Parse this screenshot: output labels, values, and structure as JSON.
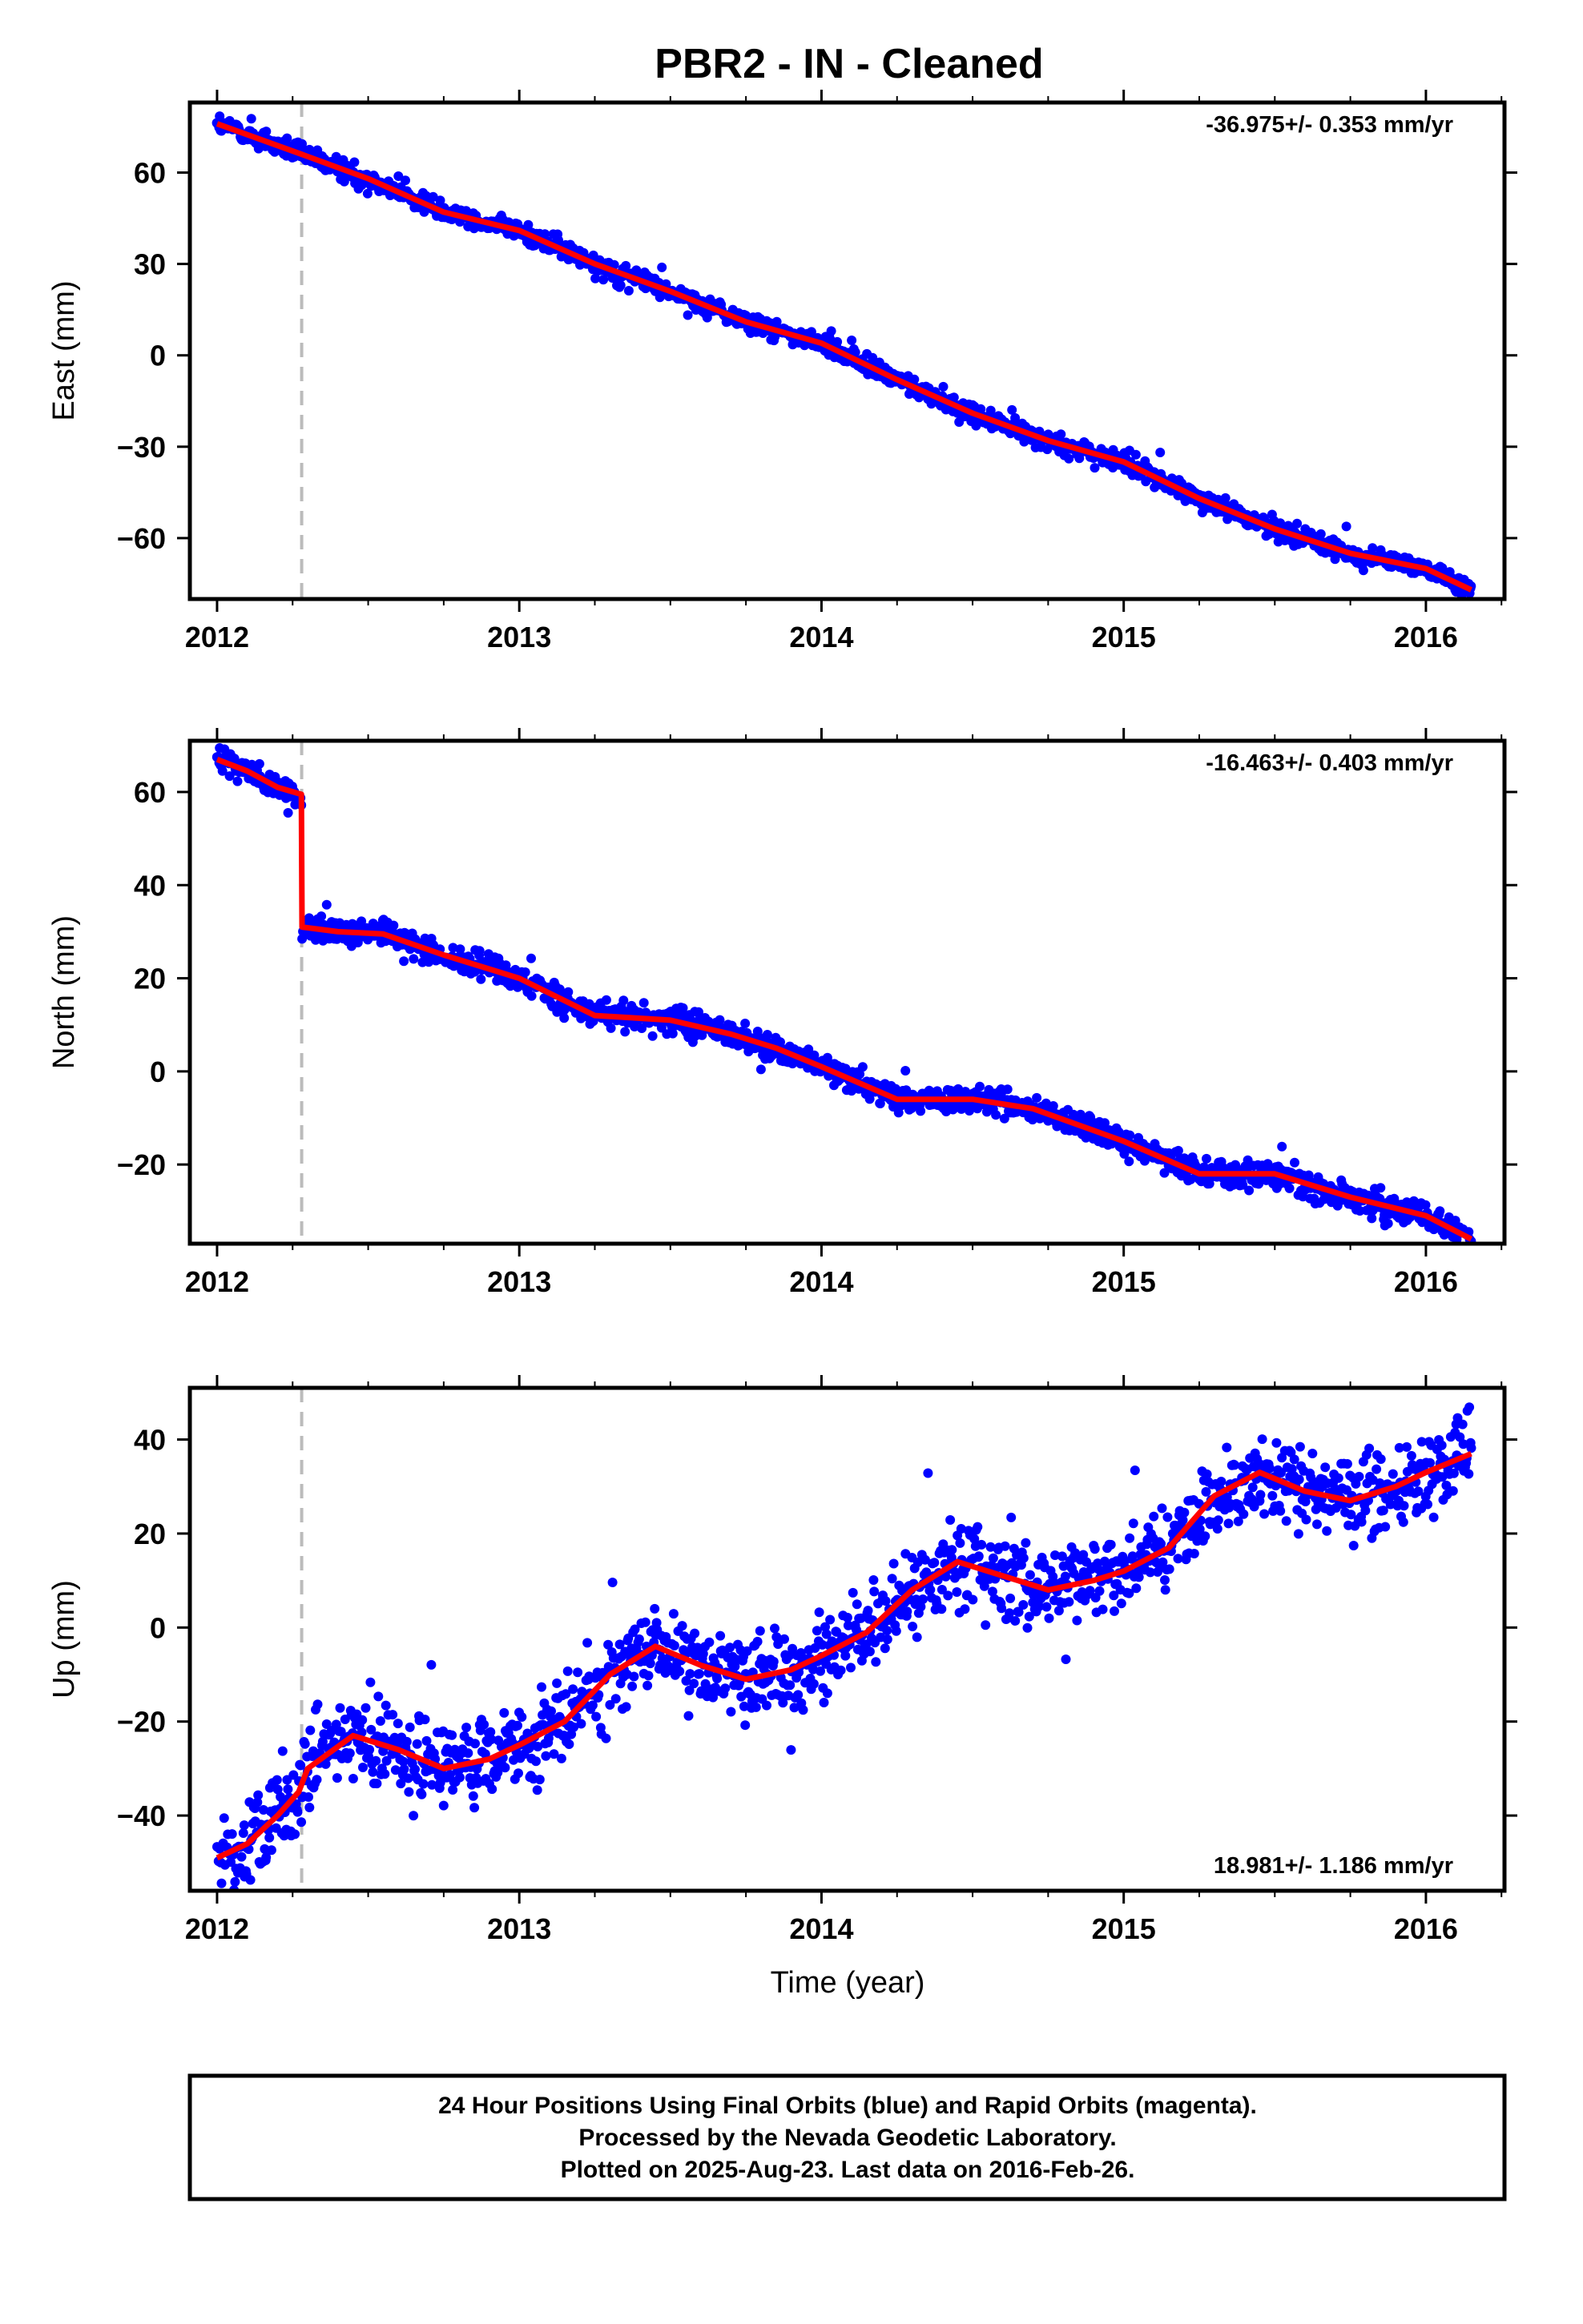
{
  "title": "PBR2  - IN - Cleaned",
  "xlabel": "Time (year)",
  "footer": {
    "line1": "24 Hour Positions Using Final Orbits (blue) and Rapid Orbits (magenta).",
    "line2": "Processed by the Nevada Geodetic Laboratory.",
    "line3": "Plotted on 2025-Aug-23. Last data on 2016-Feb-26."
  },
  "colors": {
    "points": "#0000ff",
    "fit": "#ff0000",
    "event_line": "#bbbbbb"
  },
  "chart_data": [
    {
      "type": "scatter",
      "ylabel": "East (mm)",
      "rate_text": "-36.975+/- 0.353 mm/yr",
      "rate_position": "top-right",
      "xlim": [
        2011.91,
        2016.26
      ],
      "ylim": [
        -80,
        83
      ],
      "xticks": [
        2012,
        2013,
        2014,
        2015,
        2016
      ],
      "xtick_labels": [
        "2012",
        "2013",
        "2014",
        "2015",
        "2016"
      ],
      "yticks": [
        -60,
        -30,
        0,
        30,
        60
      ],
      "ytick_labels": [
        "−60",
        "−30",
        "0",
        "30",
        "60"
      ],
      "event_x": 2012.28,
      "noise": 1.6,
      "point_count": 1400,
      "fit": {
        "x": [
          2012.0,
          2012.28,
          2012.5,
          2012.75,
          2013.0,
          2013.25,
          2013.5,
          2013.75,
          2014.0,
          2014.25,
          2014.5,
          2014.75,
          2015.0,
          2015.25,
          2015.5,
          2015.75,
          2016.0,
          2016.15
        ],
        "y": [
          76,
          66,
          58,
          47,
          41,
          30,
          21,
          11,
          4,
          -8,
          -19,
          -28,
          -35,
          -47,
          -57,
          -65,
          -70,
          -77
        ]
      },
      "series": [
        {
          "values": "scatter-and-fit"
        }
      ]
    },
    {
      "type": "scatter",
      "ylabel": "North (mm)",
      "rate_text": "-16.463+/- 0.403 mm/yr",
      "rate_position": "top-right",
      "xlim": [
        2011.91,
        2016.26
      ],
      "ylim": [
        -37,
        71
      ],
      "xticks": [
        2012,
        2013,
        2014,
        2015,
        2016
      ],
      "xtick_labels": [
        "2012",
        "2013",
        "2014",
        "2015",
        "2016"
      ],
      "yticks": [
        -20,
        0,
        20,
        40,
        60
      ],
      "ytick_labels": [
        "−20",
        "0",
        "20",
        "40",
        "60"
      ],
      "event_x": 2012.28,
      "noise": 1.4,
      "point_count": 1400,
      "fit": {
        "x": [
          2012.0,
          2012.1,
          2012.2,
          2012.279,
          2012.281,
          2012.4,
          2012.55,
          2012.75,
          2013.0,
          2013.25,
          2013.5,
          2013.7,
          2013.85,
          2014.0,
          2014.25,
          2014.5,
          2014.7,
          2015.0,
          2015.25,
          2015.5,
          2015.75,
          2016.0,
          2016.15
        ],
        "y": [
          67,
          64.5,
          61,
          59.5,
          31,
          30,
          29.5,
          25,
          20,
          12,
          11,
          8,
          5,
          1,
          -6,
          -6,
          -8,
          -15,
          -22,
          -22,
          -27,
          -31,
          -36
        ]
      },
      "series": [
        {
          "values": "scatter-and-fit"
        }
      ]
    },
    {
      "type": "scatter",
      "ylabel": "Up (mm)",
      "rate_text": "18.981+/- 1.186 mm/yr",
      "rate_position": "bottom-right",
      "xlim": [
        2011.91,
        2016.26
      ],
      "ylim": [
        -56,
        51
      ],
      "xticks": [
        2012,
        2013,
        2014,
        2015,
        2016
      ],
      "xtick_labels": [
        "2012",
        "2013",
        "2014",
        "2015",
        "2016"
      ],
      "yticks": [
        -40,
        -20,
        0,
        20,
        40
      ],
      "ytick_labels": [
        "−40",
        "−20",
        "0",
        "20",
        "40"
      ],
      "event_x": 2012.28,
      "noise": 4.5,
      "point_count": 1400,
      "fit": {
        "x": [
          2012.0,
          2012.1,
          2012.2,
          2012.27,
          2012.3,
          2012.45,
          2012.6,
          2012.75,
          2012.9,
          2013.0,
          2013.15,
          2013.3,
          2013.45,
          2013.6,
          2013.75,
          2013.9,
          2014.0,
          2014.15,
          2014.3,
          2014.45,
          2014.6,
          2014.75,
          2014.9,
          2015.0,
          2015.15,
          2015.3,
          2015.45,
          2015.6,
          2015.75,
          2015.9,
          2016.0,
          2016.15
        ],
        "y": [
          -49,
          -46,
          -40,
          -35,
          -30,
          -23,
          -26,
          -30,
          -28,
          -25,
          -20,
          -10,
          -4,
          -8,
          -11,
          -9,
          -6,
          -1,
          8,
          14,
          11,
          8,
          10,
          12,
          17,
          28,
          33,
          29,
          27,
          30,
          33,
          37
        ]
      },
      "series": [
        {
          "values": "scatter-and-fit"
        }
      ]
    }
  ]
}
